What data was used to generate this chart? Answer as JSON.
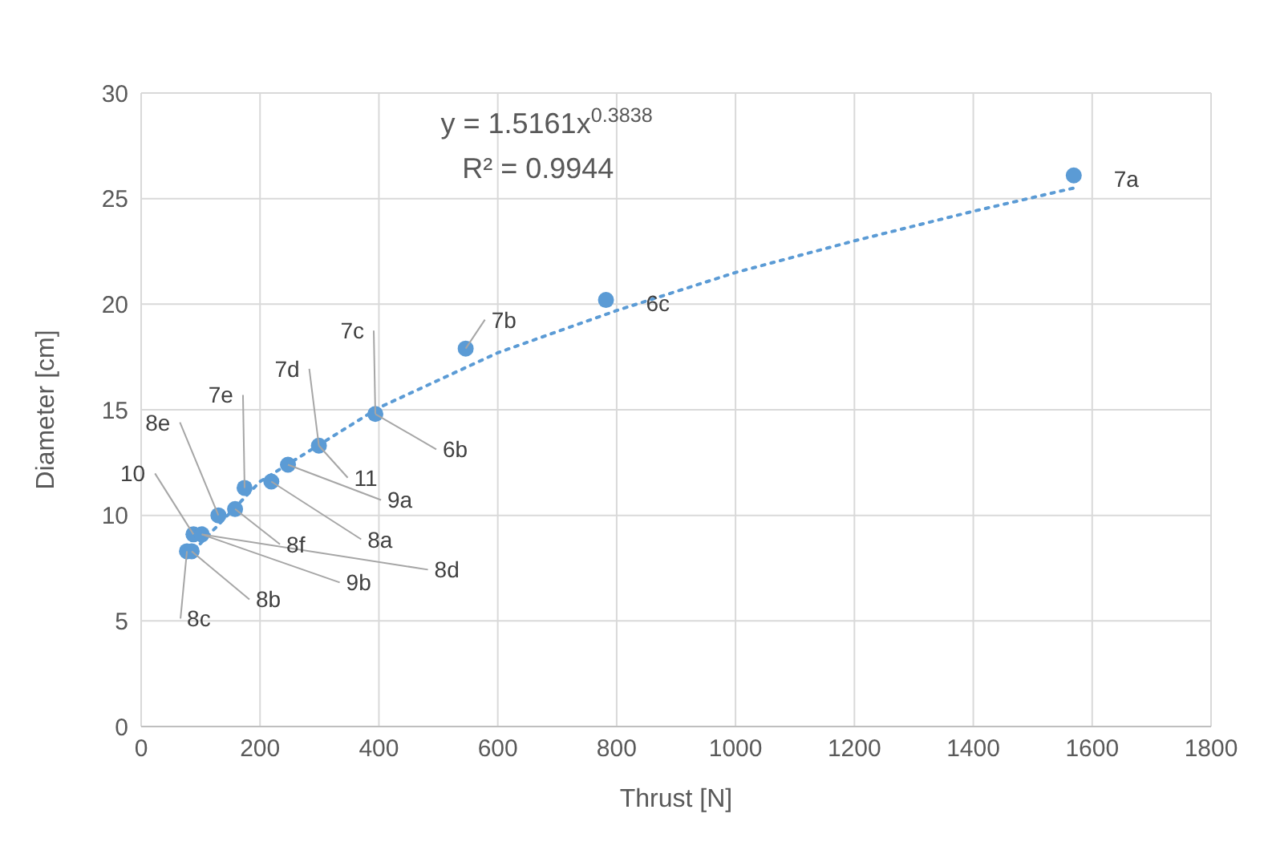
{
  "chart_data": {
    "type": "scatter",
    "xlabel": "Thrust [N]",
    "ylabel": "Diameter [cm]",
    "xlim": [
      0,
      1800
    ],
    "xticks": [
      0,
      200,
      400,
      600,
      800,
      1000,
      1200,
      1400,
      1600,
      1800
    ],
    "ylim": [
      0,
      30
    ],
    "yticks": [
      0,
      5,
      10,
      15,
      20,
      25,
      30
    ],
    "grid": true,
    "legend": false,
    "marker": "circle",
    "series": [
      {
        "color": "#5b9bd5",
        "x": [
          77,
          85,
          88,
          102,
          130,
          158,
          174,
          219,
          247,
          299,
          394,
          546,
          782,
          1569
        ],
        "values": [
          8.3,
          8.3,
          9.1,
          9.1,
          10.0,
          10.3,
          11.3,
          11.6,
          12.4,
          13.3,
          14.8,
          17.9,
          20.2,
          26.1
        ]
      },
      {
        "type": "line",
        "color": "#5b9bd5",
        "line_style": "dotted",
        "marker": "none",
        "x": [
          77,
          200,
          400,
          600,
          800,
          1000,
          1200,
          1400,
          1569
        ],
        "values": [
          8.0,
          11.6,
          15.1,
          17.7,
          19.7,
          21.5,
          23.0,
          24.4,
          25.5
        ]
      }
    ],
    "annotations": [
      "y = 1.5161x$^{0.3838}$",
      "R² = 0.9944",
      {
        "text": "8c",
        "x": 77,
        "y": 8.3
      },
      {
        "text": "8b",
        "x": 85,
        "y": 8.3
      },
      {
        "text": "10",
        "x": 88,
        "y": 9.1
      },
      {
        "text": "9b",
        "x": 102,
        "y": 9.1
      },
      {
        "text": "8d",
        "x": 102,
        "y": 9.1
      },
      {
        "text": "8e",
        "x": 130,
        "y": 10.0
      },
      {
        "text": "8f",
        "x": 158,
        "y": 10.3
      },
      {
        "text": "7e",
        "x": 174,
        "y": 11.3
      },
      {
        "text": "8a",
        "x": 219,
        "y": 11.6
      },
      {
        "text": "9a",
        "x": 247,
        "y": 12.4
      },
      {
        "text": "7d",
        "x": 299,
        "y": 13.3
      },
      {
        "text": "11",
        "x": 299,
        "y": 13.3
      },
      {
        "text": "7c",
        "x": 394,
        "y": 14.8
      },
      {
        "text": "6b",
        "x": 394,
        "y": 14.8
      },
      {
        "text": "7b",
        "x": 546,
        "y": 17.9
      },
      {
        "text": "6c",
        "x": 782,
        "y": 20.2
      },
      {
        "text": "7a",
        "x": 1569,
        "y": 26.1
      }
    ]
  }
}
